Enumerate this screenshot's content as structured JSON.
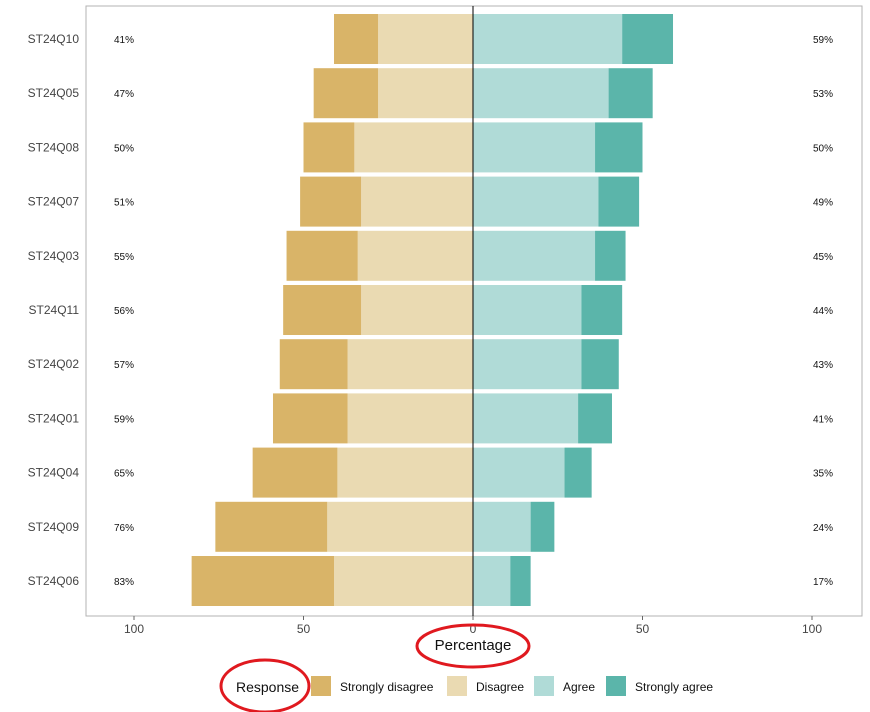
{
  "chart_data": {
    "type": "bar",
    "subtype": "diverging-stacked",
    "orientation": "horizontal",
    "xlabel": "Percentage",
    "ylabel": "",
    "xlim": [
      -100,
      100
    ],
    "xticks": [
      -100,
      -50,
      0,
      50,
      100
    ],
    "xtick_labels": [
      "100",
      "50",
      "0",
      "50",
      "100"
    ],
    "grid": false,
    "legend_title": "Response",
    "legend_position": "bottom",
    "categories": [
      "ST24Q10",
      "ST24Q05",
      "ST24Q08",
      "ST24Q07",
      "ST24Q03",
      "ST24Q11",
      "ST24Q02",
      "ST24Q01",
      "ST24Q04",
      "ST24Q09",
      "ST24Q06"
    ],
    "series": [
      {
        "name": "Strongly disagree",
        "side": "left",
        "color": "#d9b468",
        "values": [
          13,
          19,
          15,
          18,
          21,
          23,
          20,
          22,
          25,
          33,
          42
        ]
      },
      {
        "name": "Disagree",
        "side": "left",
        "color": "#eadab2",
        "values": [
          28,
          28,
          35,
          33,
          34,
          33,
          37,
          37,
          40,
          43,
          41
        ]
      },
      {
        "name": "Agree",
        "side": "right",
        "color": "#b0dbd7",
        "values": [
          44,
          40,
          36,
          37,
          36,
          32,
          32,
          31,
          27,
          17,
          11
        ]
      },
      {
        "name": "Strongly agree",
        "side": "right",
        "color": "#5bb5aa",
        "values": [
          15,
          13,
          14,
          12,
          9,
          12,
          11,
          10,
          8,
          7,
          6
        ]
      }
    ],
    "left_labels": [
      "41%",
      "47%",
      "50%",
      "51%",
      "55%",
      "56%",
      "57%",
      "59%",
      "65%",
      "76%",
      "83%"
    ],
    "right_labels": [
      "59%",
      "53%",
      "50%",
      "49%",
      "45%",
      "44%",
      "43%",
      "41%",
      "35%",
      "24%",
      "17%"
    ]
  }
}
